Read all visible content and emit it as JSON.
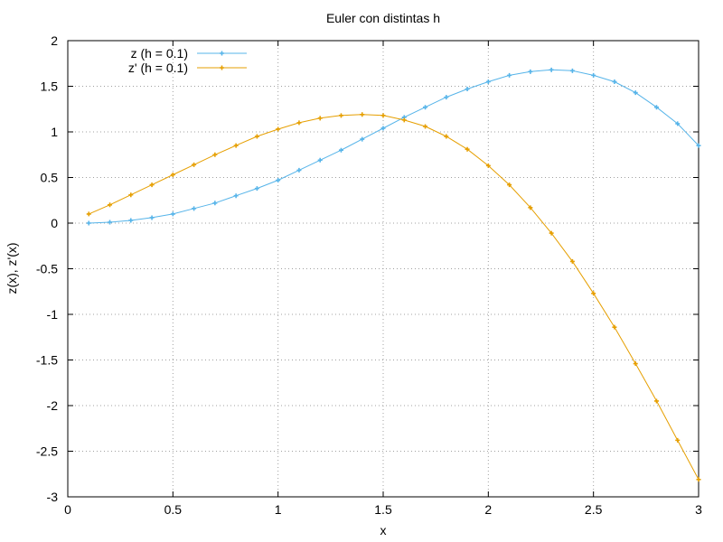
{
  "chart_data": {
    "type": "line",
    "title": "Euler con distintas h",
    "xlabel": "x",
    "ylabel": "z(x), z'(x)",
    "xlim": [
      0,
      3
    ],
    "ylim": [
      -3,
      2
    ],
    "xticks": [
      "0",
      "0.5",
      "1",
      "1.5",
      "2",
      "2.5",
      "3"
    ],
    "yticks": [
      "-3",
      "-2.5",
      "-2",
      "-1.5",
      "-1",
      "-0.5",
      "0",
      "0.5",
      "1",
      "1.5",
      "2"
    ],
    "grid": true,
    "legend_position": "top-left",
    "x": [
      0.1,
      0.2,
      0.3,
      0.4,
      0.5,
      0.6,
      0.7,
      0.8,
      0.9,
      1.0,
      1.1,
      1.2,
      1.3,
      1.4,
      1.5,
      1.6,
      1.7,
      1.8,
      1.9,
      2.0,
      2.1,
      2.2,
      2.3,
      2.4,
      2.5,
      2.6,
      2.7,
      2.8,
      2.9,
      3.0
    ],
    "series": [
      {
        "name": "z (h = 0.1)",
        "color": "#56b4e9",
        "values": [
          0.0,
          0.01,
          0.03,
          0.06,
          0.1,
          0.16,
          0.22,
          0.3,
          0.38,
          0.47,
          0.58,
          0.69,
          0.8,
          0.92,
          1.04,
          1.16,
          1.27,
          1.38,
          1.47,
          1.55,
          1.62,
          1.66,
          1.68,
          1.67,
          1.62,
          1.55,
          1.43,
          1.27,
          1.09,
          0.85
        ]
      },
      {
        "name": "z' (h = 0.1)",
        "color": "#e69f00",
        "values": [
          0.1,
          0.2,
          0.31,
          0.42,
          0.53,
          0.64,
          0.75,
          0.85,
          0.95,
          1.03,
          1.1,
          1.15,
          1.18,
          1.19,
          1.18,
          1.13,
          1.06,
          0.95,
          0.81,
          0.63,
          0.42,
          0.17,
          -0.11,
          -0.42,
          -0.77,
          -1.14,
          -1.54,
          -1.95,
          -2.38,
          -2.81
        ]
      }
    ]
  }
}
